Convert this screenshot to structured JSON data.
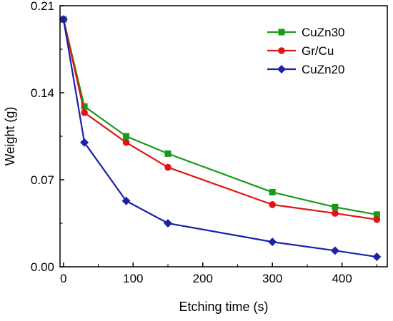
{
  "chart_data": {
    "type": "line",
    "title": "",
    "xlabel": "Etching time (s)",
    "ylabel": "Weight (g)",
    "xlim": [
      -5,
      465
    ],
    "ylim": [
      0,
      0.21
    ],
    "x_ticks": [
      0,
      100,
      200,
      300,
      400
    ],
    "x_tick_labels": [
      "0",
      "100",
      "200",
      "300",
      "400"
    ],
    "y_ticks": [
      0,
      0.07,
      0.14,
      0.21
    ],
    "y_tick_labels": [
      "0.00",
      "0.07",
      "0.14",
      "0.21"
    ],
    "grid": false,
    "legend_position": "top-right",
    "series": [
      {
        "name": "CuZn30",
        "color": "#1a9a1a",
        "marker": "square",
        "x": [
          0,
          30,
          90,
          150,
          300,
          390,
          450
        ],
        "y": [
          0.199,
          0.129,
          0.105,
          0.091,
          0.06,
          0.048,
          0.042
        ]
      },
      {
        "name": "Gr/Cu",
        "color": "#e01414",
        "marker": "circle",
        "x": [
          0,
          30,
          90,
          150,
          300,
          390,
          450
        ],
        "y": [
          0.199,
          0.124,
          0.1,
          0.08,
          0.05,
          0.043,
          0.038
        ]
      },
      {
        "name": "CuZn20",
        "color": "#1a22a8",
        "marker": "diamond",
        "x": [
          0,
          30,
          90,
          150,
          300,
          390,
          450
        ],
        "y": [
          0.199,
          0.1,
          0.053,
          0.035,
          0.02,
          0.013,
          0.008
        ]
      }
    ]
  }
}
